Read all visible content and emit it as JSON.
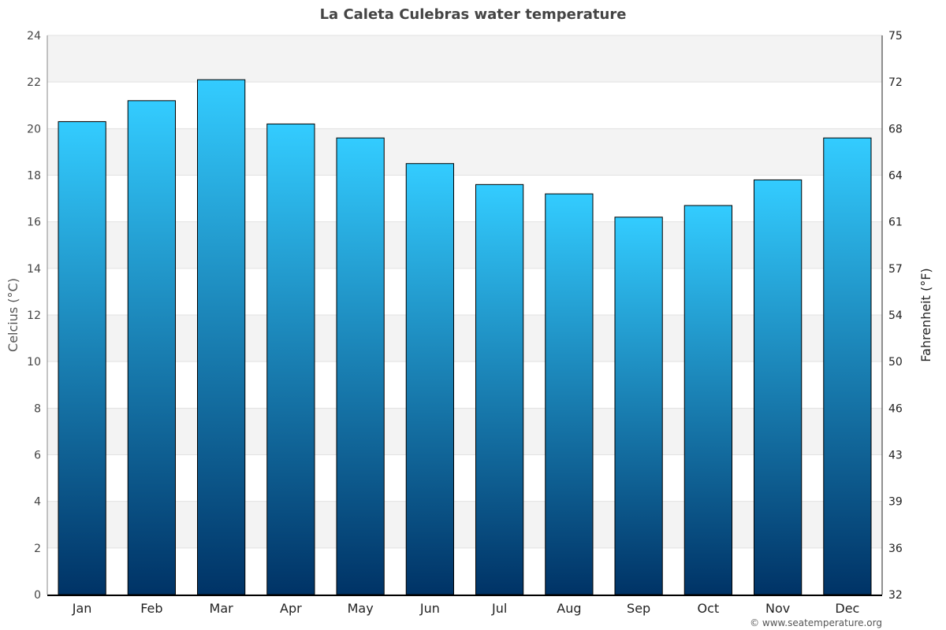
{
  "chart_data": {
    "type": "bar",
    "title": "La Caleta Culebras water temperature",
    "categories": [
      "Jan",
      "Feb",
      "Mar",
      "Apr",
      "May",
      "Jun",
      "Jul",
      "Aug",
      "Sep",
      "Oct",
      "Nov",
      "Dec"
    ],
    "values": [
      20.3,
      21.2,
      22.1,
      20.2,
      19.6,
      18.5,
      17.6,
      17.2,
      16.2,
      16.7,
      17.8,
      19.6
    ],
    "ylabel": "Celcius (°C)",
    "y2label": "Fahrenheit (°F)",
    "ylim": [
      0,
      24
    ],
    "yticks": [
      0,
      2,
      4,
      6,
      8,
      10,
      12,
      14,
      16,
      18,
      20,
      22,
      24
    ],
    "y2ticks": [
      "32",
      "36",
      "39",
      "43",
      "46",
      "50",
      "54",
      "57",
      "61",
      "64",
      "68",
      "72",
      "75"
    ],
    "grid": true,
    "colors": {
      "bar_top": "#33ccff",
      "bar_bottom": "#003366",
      "band": "#f3f3f3"
    }
  },
  "credit": "© www.seatemperature.org"
}
